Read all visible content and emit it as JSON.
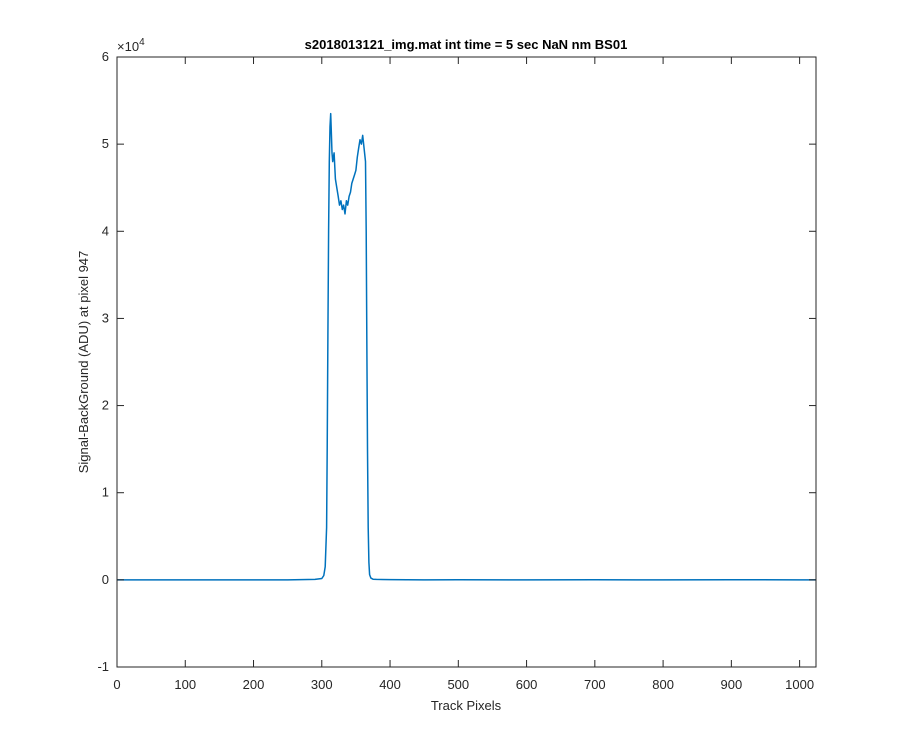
{
  "chart_data": {
    "type": "line",
    "title": "s2018013121_img.mat int time = 5 sec  NaN nm BS01",
    "xlabel": "Track Pixels",
    "ylabel": "Signal-BackGround (ADU) at pixel 947",
    "exponent_label": "×10",
    "exponent_power": "4",
    "xlim": [
      0,
      1024
    ],
    "ylim": [
      -10000,
      60000
    ],
    "xticks": [
      0,
      100,
      200,
      300,
      400,
      500,
      600,
      700,
      800,
      900,
      1000
    ],
    "yticks": [
      -10000,
      0,
      10000,
      20000,
      30000,
      40000,
      50000,
      60000
    ],
    "ytick_labels": [
      "-1",
      "0",
      "1",
      "2",
      "3",
      "4",
      "5",
      "6"
    ],
    "grid": false,
    "line_color": "#0072BD",
    "series": [
      {
        "x": [
          0,
          50,
          100,
          150,
          200,
          250,
          290,
          300,
          303,
          305,
          307,
          308,
          309,
          310,
          311,
          312,
          313,
          314,
          315,
          316,
          318,
          320,
          322,
          324,
          326,
          328,
          330,
          332,
          334,
          336,
          338,
          340,
          342,
          344,
          346,
          348,
          350,
          352,
          354,
          356,
          358,
          360,
          362,
          364,
          365,
          366,
          367,
          368,
          369,
          370,
          372,
          375,
          380,
          400,
          450,
          500,
          600,
          700,
          800,
          900,
          1000,
          1024
        ],
        "y": [
          0,
          0,
          0,
          0,
          0,
          0,
          50,
          150,
          500,
          1500,
          6000,
          15000,
          28000,
          40000,
          48000,
          52000,
          53500,
          51500,
          49000,
          48000,
          49000,
          46000,
          45000,
          44000,
          43000,
          43500,
          42500,
          43000,
          42000,
          43500,
          43000,
          44000,
          44500,
          45500,
          46000,
          46500,
          47000,
          48500,
          49500,
          50500,
          50000,
          51000,
          49500,
          48000,
          40000,
          28000,
          15000,
          6000,
          2000,
          600,
          200,
          80,
          50,
          30,
          0,
          20,
          0,
          10,
          0,
          20,
          0,
          0
        ]
      }
    ]
  }
}
